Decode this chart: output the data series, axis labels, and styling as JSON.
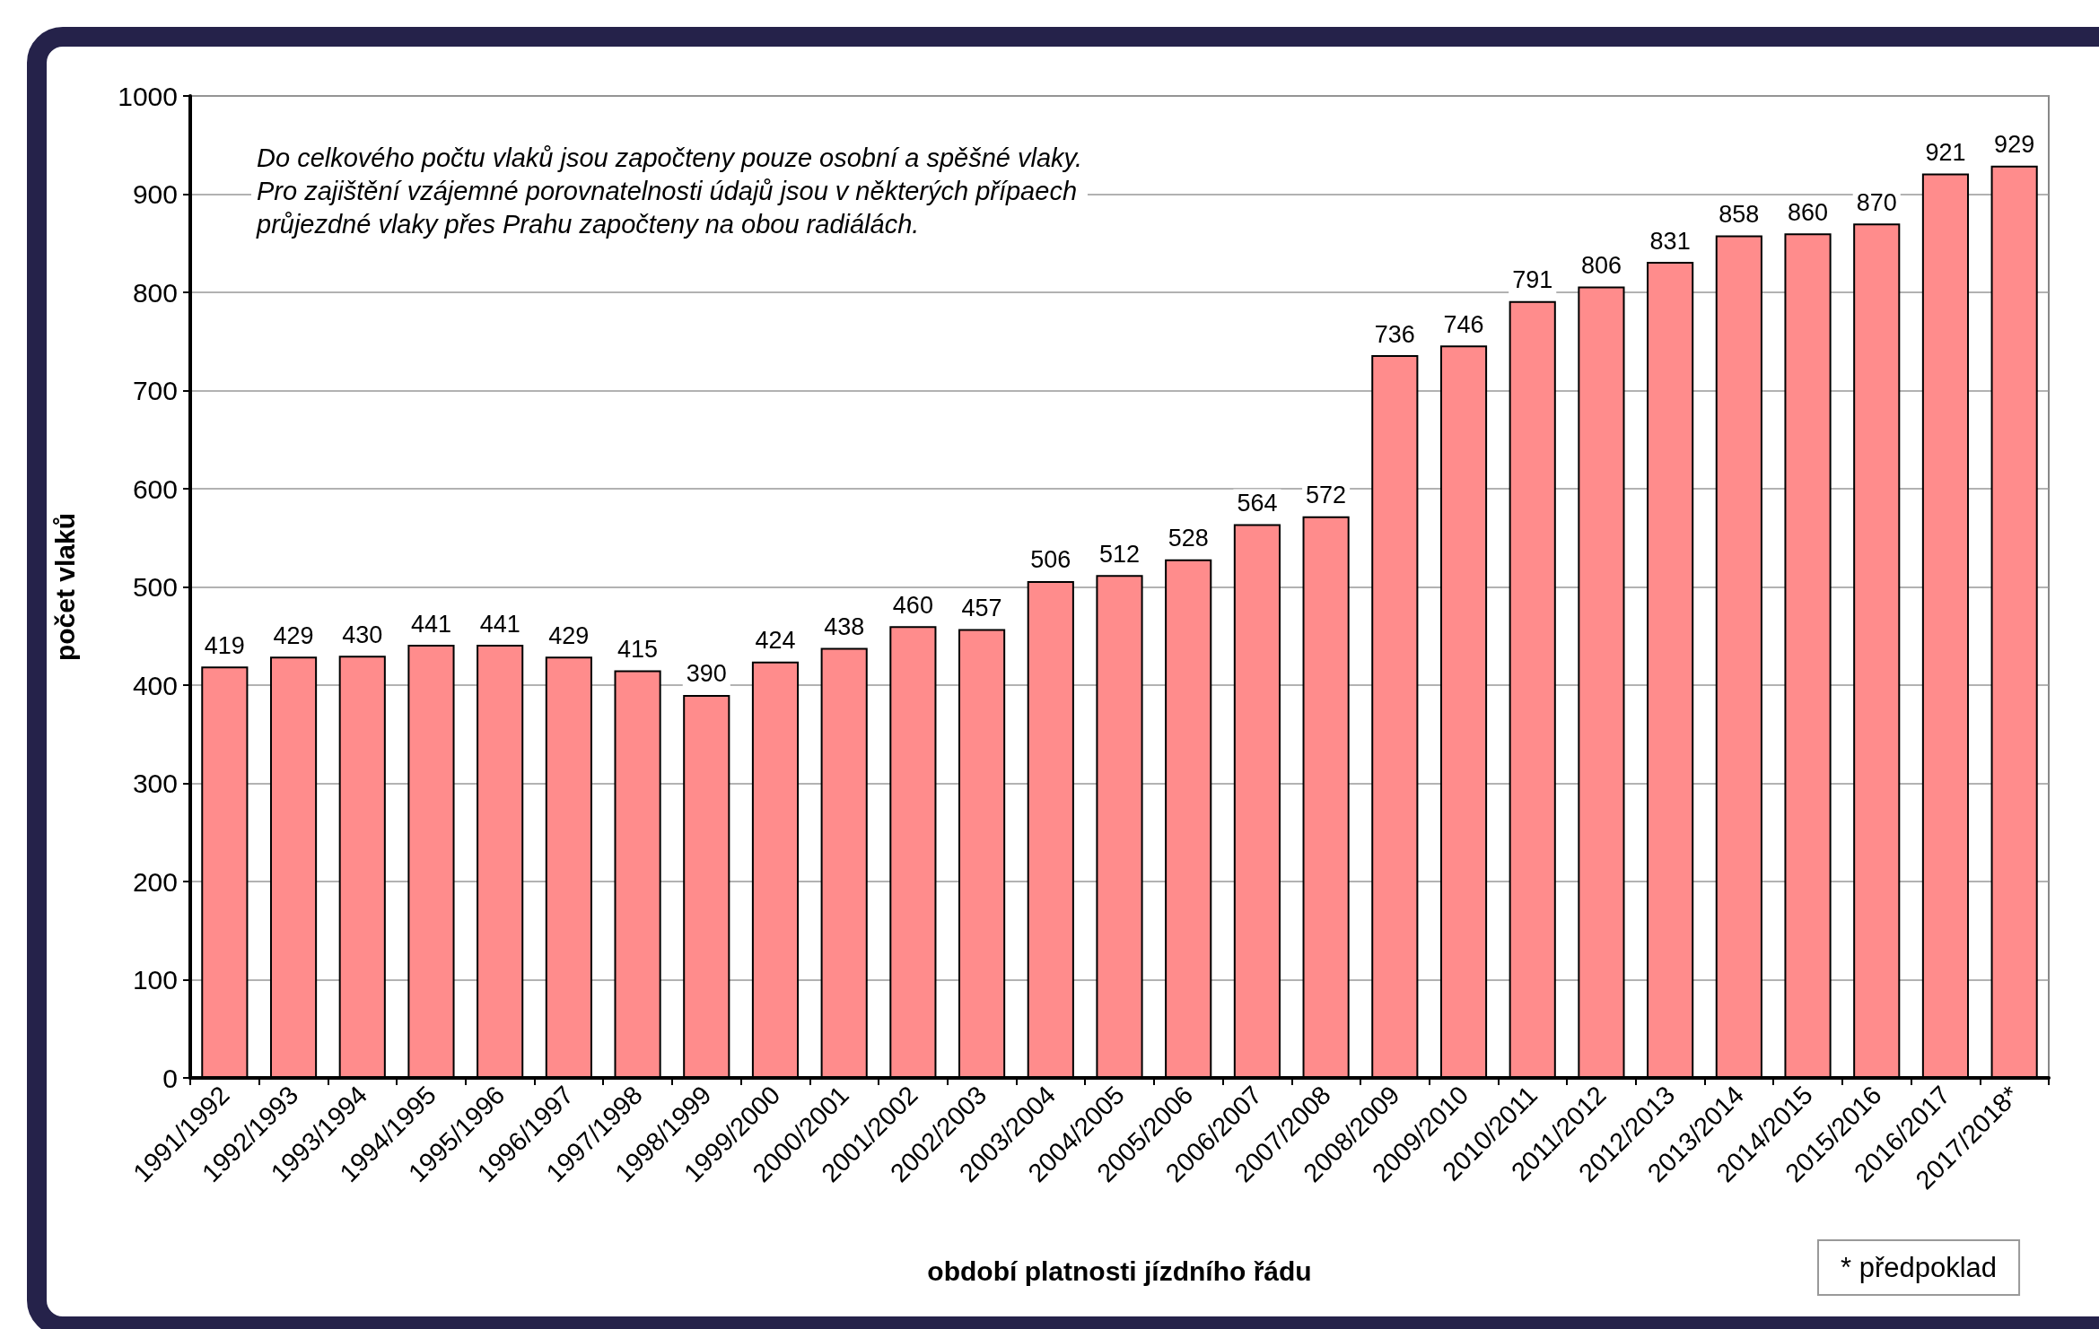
{
  "chart_data": {
    "type": "bar",
    "xlabel": "období platnosti jízdního řádu",
    "ylabel": "počet vlaků",
    "categories": [
      "1991/1992",
      "1992/1993",
      "1993/1994",
      "1994/1995",
      "1995/1996",
      "1996/1997",
      "1997/1998",
      "1998/1999",
      "1999/2000",
      "2000/2001",
      "2001/2002",
      "2002/2003",
      "2003/2004",
      "2004/2005",
      "2005/2006",
      "2006/2007",
      "2007/2008",
      "2008/2009",
      "2009/2010",
      "2010/2011",
      "2011/2012",
      "2012/2013",
      "2013/2014",
      "2014/2015",
      "2015/2016",
      "2016/2017",
      "2017/2018*"
    ],
    "values": [
      419,
      429,
      430,
      441,
      441,
      429,
      415,
      390,
      424,
      438,
      460,
      457,
      506,
      512,
      528,
      564,
      572,
      736,
      746,
      791,
      806,
      831,
      858,
      860,
      870,
      921,
      929
    ],
    "color": "#ff8c8c",
    "data_labels": true,
    "ylim": [
      0,
      1000
    ],
    "yticks": [
      0,
      100,
      200,
      300,
      400,
      500,
      600,
      700,
      800,
      900,
      1000
    ],
    "grid": "y",
    "annotations": [
      "Do celkového počtu vlaků jsou započteny pouze osobní a spěšné vlaky.\nPro zajištění vzájemné porovnatelnosti údajů jsou v některých přípaech\nprůjezdné vlaky přes Prahu započteny na obou radiálách.",
      "* předpoklad"
    ]
  }
}
